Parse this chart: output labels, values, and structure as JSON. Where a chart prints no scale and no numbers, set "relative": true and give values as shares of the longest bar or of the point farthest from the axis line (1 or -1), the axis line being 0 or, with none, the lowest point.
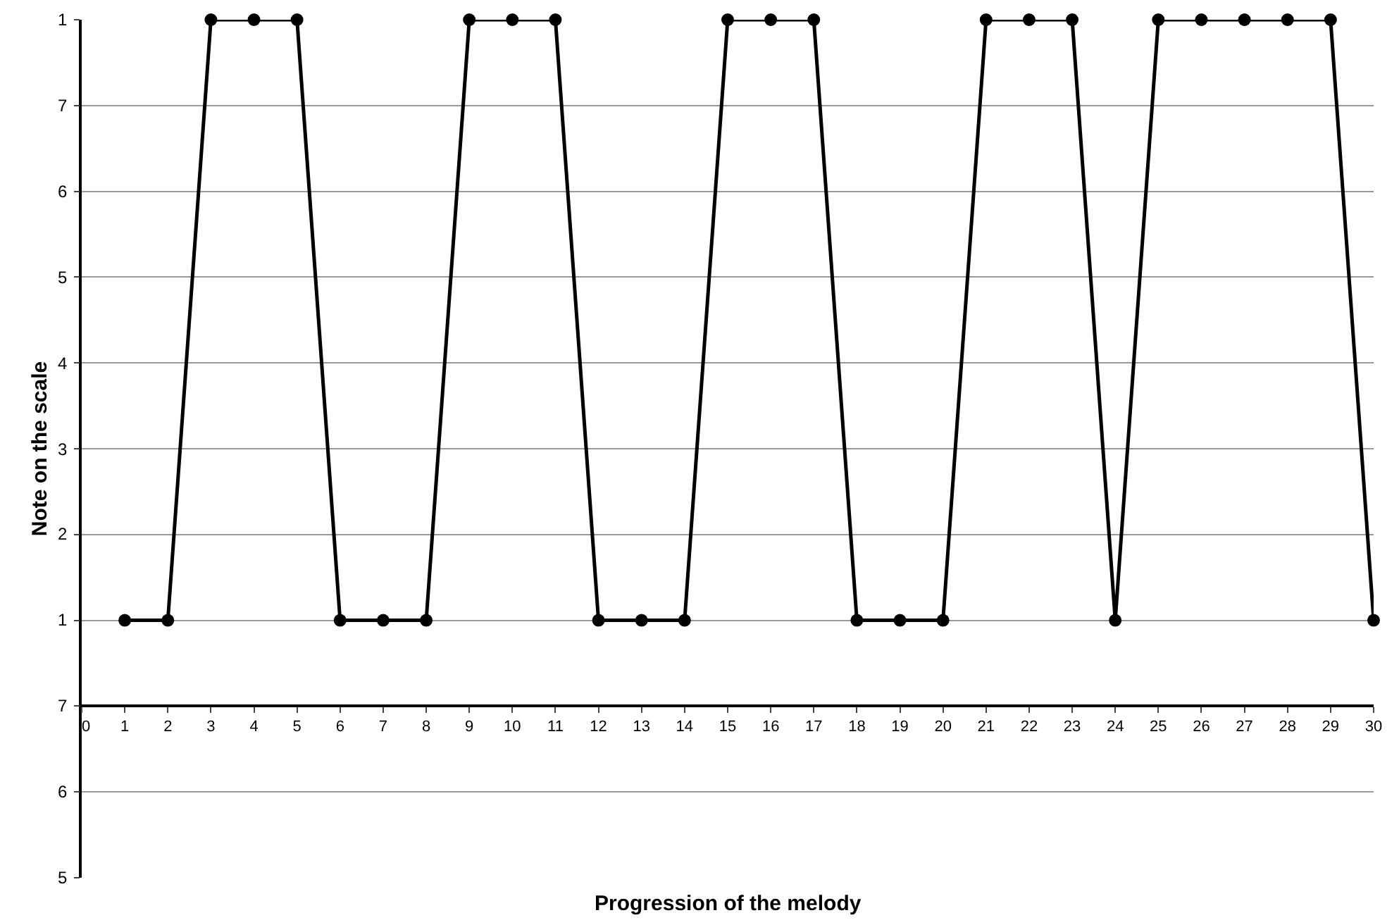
{
  "chart_data": {
    "type": "line",
    "ylabel": "Note on the scale",
    "x": [
      1,
      2,
      3,
      4,
      5,
      6,
      7,
      8,
      9,
      10,
      11,
      12,
      13,
      14,
      15,
      16,
      17,
      18,
      19,
      20,
      21,
      22,
      23,
      24,
      25,
      26,
      27,
      28,
      29,
      30
    ],
    "series": [
      {
        "color": "#000000",
        "values": [
          0.125,
          0.125,
          1,
          1,
          1,
          0.125,
          0.125,
          0.125,
          1,
          1,
          1,
          0.125,
          0.125,
          0.125,
          1,
          1,
          1,
          0.125,
          0.125,
          0.125,
          1,
          1,
          1,
          0.125,
          1,
          1,
          1,
          1,
          1,
          0.125
        ]
      }
    ],
    "relative": true,
    "xlim": [
      0,
      30
    ],
    "xticks": [
      0,
      1,
      2,
      3,
      4,
      5,
      6,
      7,
      8,
      9,
      10,
      11,
      12,
      13,
      14,
      15,
      16,
      17,
      18,
      19,
      20,
      21,
      22,
      23,
      24,
      25,
      26,
      27,
      28,
      29,
      30
    ],
    "annotations": [
      "5",
      "6",
      "7",
      "1",
      "2",
      "3",
      "4",
      "5",
      "6",
      "7",
      "1",
      "Progression of the melody"
    ],
    "grid": "y",
    "marker": "circle",
    "line_style": "solid"
  }
}
